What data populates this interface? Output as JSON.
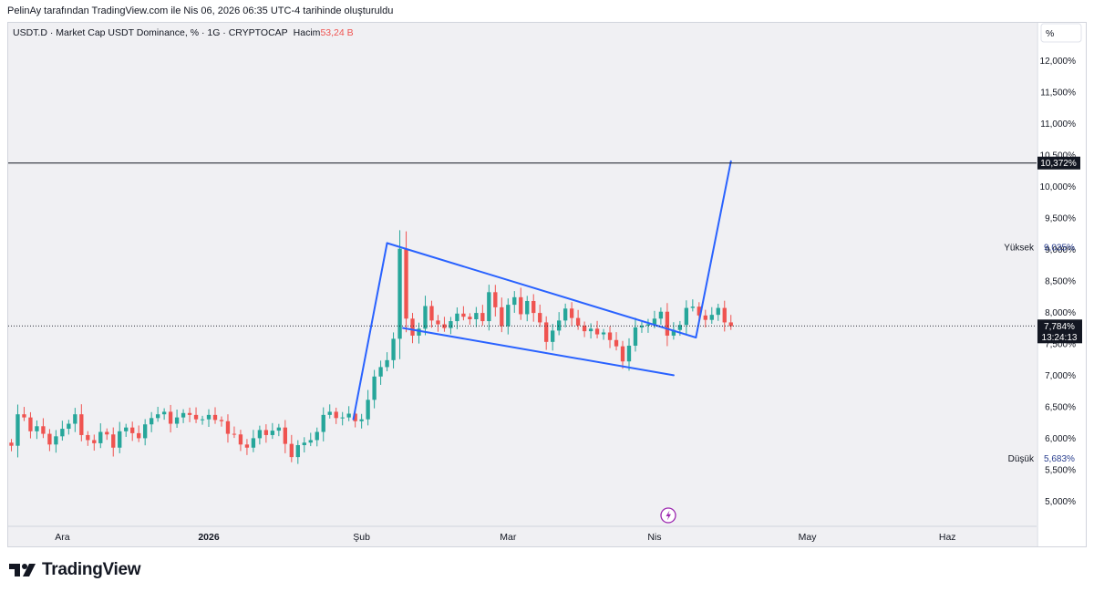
{
  "caption": "PelinAy tarafından TradingView.com ile Nis 06, 2026 06:35 UTC-4 tarihinde oluşturuldu",
  "brand": "TradingView",
  "legend": {
    "symbol": "USDT.D · Market Cap USDT Dominance, % · 1G · CRYPTOCAP",
    "volume_label": "Hacim",
    "volume_value": "53,24 B"
  },
  "colors": {
    "up": "#26a69a",
    "down": "#ef5350",
    "drawing": "#2962ff",
    "hline": "#131722",
    "pane_bg": "#f0f0f3",
    "volume_value": "#ef5350"
  },
  "icons": {
    "flash": "lightning-icon",
    "logo": "tradingview-logo-icon"
  },
  "chart_data": {
    "type": "candlestick",
    "y_unit": "%",
    "y_ticks": [
      "12,000%",
      "11,500%",
      "11,000%",
      "10,500%",
      "10,000%",
      "9,500%",
      "9,000%",
      "8,500%",
      "8,000%",
      "7,500%",
      "7,000%",
      "6,500%",
      "6,000%",
      "5,500%",
      "5,000%"
    ],
    "x_ticks": [
      {
        "label": "Ara",
        "bold": false
      },
      {
        "label": "2026",
        "bold": true
      },
      {
        "label": "Şub",
        "bold": false
      },
      {
        "label": "Mar",
        "bold": false
      },
      {
        "label": "Nis",
        "bold": false
      },
      {
        "label": "May",
        "bold": false
      },
      {
        "label": "Haz",
        "bold": false
      }
    ],
    "x_tick_index": [
      8,
      31,
      55,
      78,
      101,
      125,
      147
    ],
    "ylim": [
      4.6,
      12.6
    ],
    "xlim": [
      -0.5,
      161
    ],
    "horizontal_line": {
      "value": 10.372,
      "label": "10,372%"
    },
    "last_price": {
      "value": 7.784,
      "label": "7,784%",
      "countdown": "13:24:13"
    },
    "high": {
      "label": "Yüksek",
      "value": "9,035%",
      "y": 9.035
    },
    "low": {
      "label": "Düşük",
      "value": "5,683%",
      "y": 5.683
    },
    "closes": [
      5.88,
      6.38,
      6.33,
      6.11,
      6.19,
      6.07,
      5.9,
      6.03,
      6.15,
      6.23,
      6.38,
      6.05,
      5.97,
      5.92,
      6.1,
      6.06,
      5.85,
      6.11,
      6.17,
      6.08,
      6.0,
      6.22,
      6.32,
      6.38,
      6.42,
      6.23,
      6.33,
      6.4,
      6.37,
      6.3,
      6.3,
      6.37,
      6.29,
      6.27,
      6.07,
      6.06,
      5.9,
      5.85,
      6.0,
      6.13,
      6.05,
      6.12,
      6.17,
      5.91,
      5.7,
      5.89,
      5.93,
      5.97,
      6.1,
      6.37,
      6.42,
      6.32,
      6.33,
      6.39,
      6.27,
      6.3,
      6.61,
      6.98,
      7.13,
      7.24,
      7.58,
      9.01,
      7.9,
      7.63,
      7.74,
      8.1,
      7.87,
      7.81,
      7.75,
      7.86,
      7.98,
      7.93,
      7.89,
      7.99,
      7.86,
      8.32,
      8.08,
      7.78,
      8.12,
      8.24,
      7.97,
      8.18,
      7.99,
      7.84,
      7.53,
      7.71,
      7.87,
      8.06,
      7.91,
      7.79,
      7.7,
      7.74,
      7.65,
      7.68,
      7.56,
      7.46,
      7.22,
      7.47,
      7.76,
      7.79,
      7.81,
      7.9,
      8.01,
      7.63,
      7.72,
      7.8,
      8.07,
      8.09,
      7.95,
      7.88,
      7.96,
      8.07,
      7.84,
      7.78
    ],
    "start_index": 0,
    "trendlines": [
      {
        "name": "flagpole",
        "from": [
          53.7,
          6.3
        ],
        "to": [
          59.0,
          9.1
        ]
      },
      {
        "name": "flag-upper",
        "from": [
          59.0,
          9.1
        ],
        "to": [
          107.5,
          7.6
        ]
      },
      {
        "name": "flag-lower",
        "from": [
          61.5,
          7.75
        ],
        "to": [
          104.0,
          7.0
        ]
      },
      {
        "name": "target-leg",
        "from": [
          107.5,
          7.6
        ],
        "to": [
          113.0,
          10.4
        ]
      }
    ]
  }
}
